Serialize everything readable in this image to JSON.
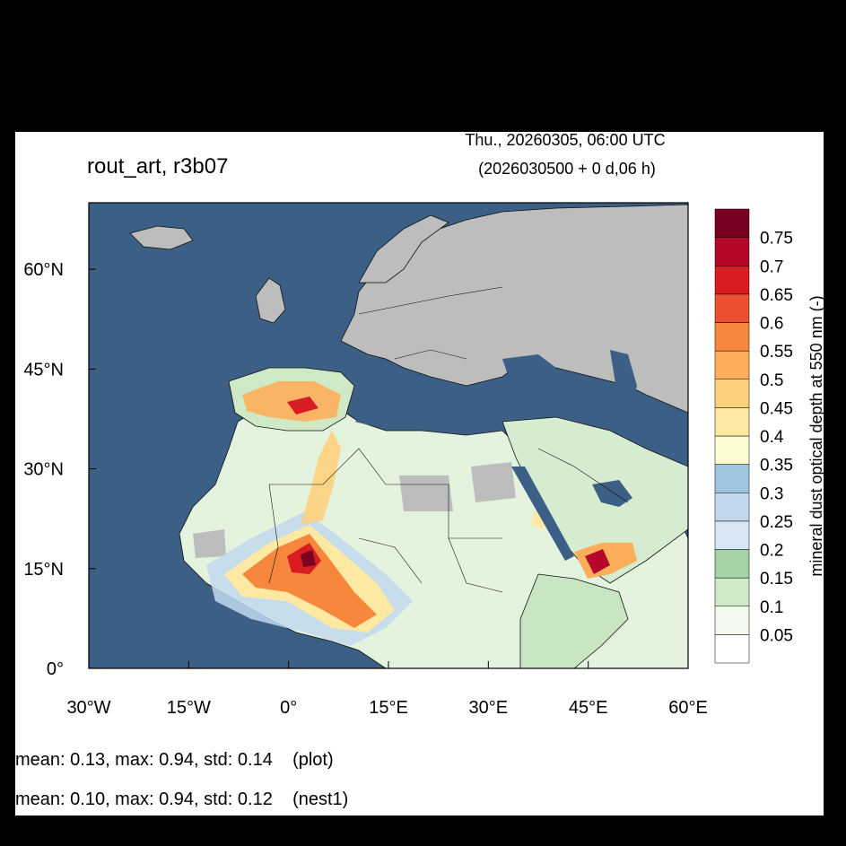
{
  "header": {
    "title": "rout_art, r3b07",
    "valid_time": "Thu., 20260305, 06:00 UTC",
    "run_info": "(2026030500 + 0 d,06 h)"
  },
  "map": {
    "lon_ticks": [
      "30°W",
      "15°W",
      "0°",
      "15°E",
      "30°E",
      "45°E",
      "60°E"
    ],
    "lat_ticks": [
      "60°N",
      "45°N",
      "30°N",
      "15°N",
      "0°"
    ],
    "lon_range": [
      -30,
      60
    ],
    "lat_range": [
      0,
      70
    ]
  },
  "colorbar": {
    "label": "mineral dust optical depth at 550 nm (-)",
    "ticks": [
      "0.05",
      "0.1",
      "0.15",
      "0.2",
      "0.25",
      "0.3",
      "0.35",
      "0.4",
      "0.45",
      "0.5",
      "0.55",
      "0.6",
      "0.65",
      "0.7",
      "0.75"
    ],
    "colors": [
      "#ffffff",
      "#f1f9ec",
      "#cfe9c6",
      "#a4d3a6",
      "#d8e6f4",
      "#c3d8ee",
      "#9fc6e0",
      "#fffbd0",
      "#fde9a2",
      "#fdd07e",
      "#fdae5a",
      "#f8873e",
      "#ec5030",
      "#d81d22",
      "#b5072a",
      "#7a0020"
    ]
  },
  "stats": {
    "plot_line": "mean: 0.13, max: 0.94, std: 0.14    (plot)",
    "nest_line": "mean: 0.10, max: 0.94, std: 0.12    (nest1)"
  }
}
